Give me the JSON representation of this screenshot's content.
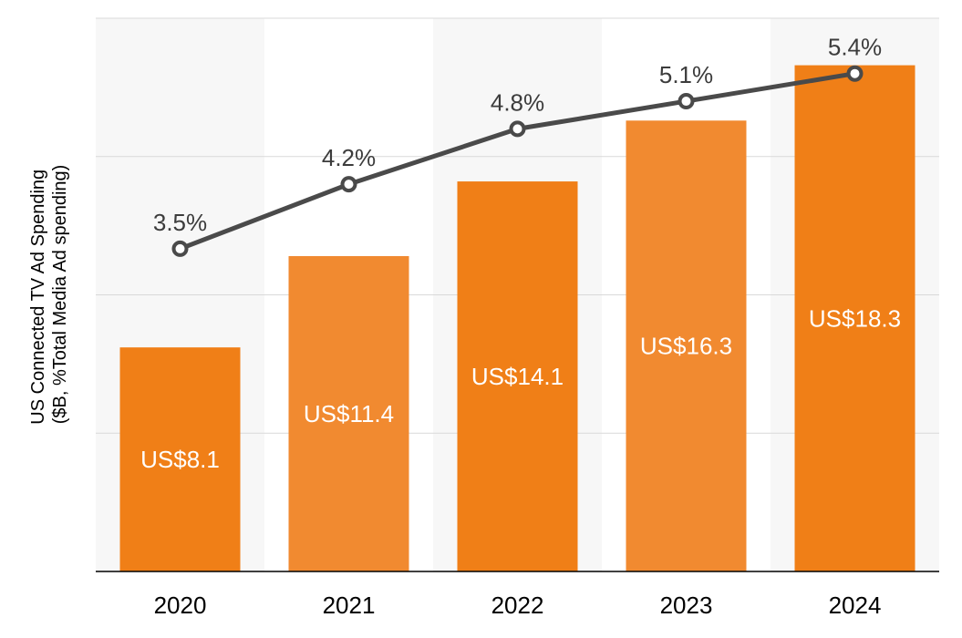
{
  "chart_data": {
    "type": "bar",
    "categories": [
      "2020",
      "2021",
      "2022",
      "2023",
      "2024"
    ],
    "ylabel_lines": [
      "US Connected TV Ad Spending",
      "($B, %Total Media Ad spending)"
    ],
    "xlabel": "",
    "title": "",
    "grid": true,
    "legend": "none",
    "series": [
      {
        "type": "bar",
        "values": [
          8.1,
          11.4,
          14.1,
          16.3,
          18.3
        ],
        "labels": [
          "US$8.1",
          "US$11.4",
          "US$14.1",
          "US$16.3",
          "US$18.3"
        ],
        "ylim": [
          0,
          20
        ]
      },
      {
        "type": "line",
        "values": [
          3.5,
          4.2,
          4.8,
          5.1,
          5.4
        ],
        "labels": [
          "3.5%",
          "4.2%",
          "4.8%",
          "5.1%",
          "5.4%"
        ],
        "ylim": [
          0,
          6
        ]
      }
    ]
  },
  "colors": {
    "bar": "#f07f17",
    "bar_alt": "#f18a30",
    "line": "#4a4a4a",
    "marker_fill": "#ffffff",
    "band": "#f7f7f7",
    "grid": "#d9d9d9",
    "axis": "#000000"
  }
}
